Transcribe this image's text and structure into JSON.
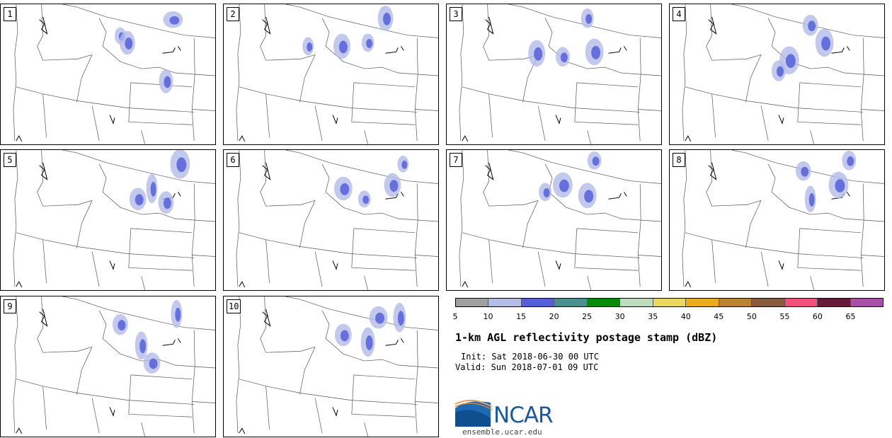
{
  "panels": [
    {
      "label": "1"
    },
    {
      "label": "2"
    },
    {
      "label": "3"
    },
    {
      "label": "4"
    },
    {
      "label": "5"
    },
    {
      "label": "6"
    },
    {
      "label": "7"
    },
    {
      "label": "8"
    },
    {
      "label": "9"
    },
    {
      "label": "10"
    }
  ],
  "colorbar": {
    "colors": [
      "#a0a0a0",
      "#b4bce8",
      "#5560d8",
      "#4a9090",
      "#0a8a0a",
      "#bedcbe",
      "#ecd860",
      "#ecac20",
      "#ba8434",
      "#8a5a3c",
      "#f0507a",
      "#661a3a",
      "#a850a8"
    ],
    "ticks": [
      "5",
      "10",
      "15",
      "20",
      "25",
      "30",
      "35",
      "40",
      "45",
      "50",
      "55",
      "60",
      "65"
    ]
  },
  "title": "1-km AGL reflectivity postage stamp (dBZ)",
  "init": "Init: Sat 2018-06-30 00 UTC",
  "valid": "Valid: Sun 2018-07-01 09 UTC",
  "logo": {
    "text": "NCAR",
    "site": "ensemble.ucar.edu"
  }
}
